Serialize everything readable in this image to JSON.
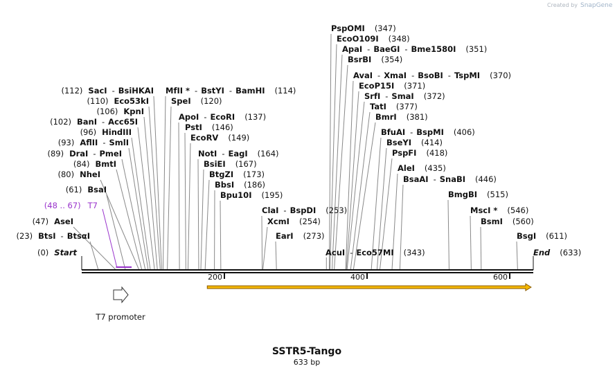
{
  "credit": {
    "prefix": "Created by",
    "brand": "SnapGene"
  },
  "sequence": {
    "name": "SSTR5-Tango",
    "length_label": "633 bp",
    "length": 633
  },
  "ends": [
    {
      "name": "Start",
      "pos": "(0)"
    },
    {
      "name": "End",
      "pos": "(633)"
    }
  ],
  "ruler": {
    "ticks": [
      200,
      400,
      600
    ]
  },
  "colors": {
    "primer": "#9933cc",
    "orf_fill": "#f5b800",
    "orf_stroke": "#8a5a00",
    "backbone": "#111111",
    "leader": "#888888"
  },
  "features": {
    "t7_primer": {
      "label": "T7",
      "range": "(48 .. 67)",
      "start": 48,
      "end": 67
    },
    "t7_promoter": {
      "label": "T7 promoter",
      "start": 48,
      "end": 67
    },
    "orf": {
      "start": 176,
      "end": 630
    }
  },
  "left_sites": [
    {
      "bp": 23,
      "names": [
        "BtsI",
        "BtsαI"
      ],
      "pos": "(23)"
    },
    {
      "bp": 47,
      "names": [
        "AseI"
      ],
      "pos": "(47)"
    },
    {
      "bp": 61,
      "names": [
        "BsaI"
      ],
      "pos": "(61)"
    },
    {
      "bp": 80,
      "names": [
        "NheI"
      ],
      "pos": "(80)"
    },
    {
      "bp": 84,
      "names": [
        "BmtI"
      ],
      "pos": "(84)"
    },
    {
      "bp": 89,
      "names": [
        "DraI",
        "PmeI"
      ],
      "pos": "(89)"
    },
    {
      "bp": 93,
      "names": [
        "AflII",
        "SmlI"
      ],
      "pos": "(93)"
    },
    {
      "bp": 96,
      "names": [
        "HindIII"
      ],
      "pos": "(96)"
    },
    {
      "bp": 102,
      "names": [
        "BanI",
        "Acc65I"
      ],
      "pos": "(102)"
    },
    {
      "bp": 106,
      "names": [
        "KpnI"
      ],
      "pos": "(106)"
    },
    {
      "bp": 110,
      "names": [
        "Eco53kI"
      ],
      "pos": "(110)"
    },
    {
      "bp": 112,
      "names": [
        "SacI",
        "BsiHKAI"
      ],
      "pos": "(112)"
    }
  ],
  "right_sites": [
    {
      "bp": 114,
      "names": [
        "MfII *",
        "BstYI",
        "BamHI"
      ],
      "pos": "(114)"
    },
    {
      "bp": 120,
      "names": [
        "SpeI"
      ],
      "pos": "(120)"
    },
    {
      "bp": 137,
      "names": [
        "ApoI",
        "EcoRI"
      ],
      "pos": "(137)"
    },
    {
      "bp": 146,
      "names": [
        "PstI"
      ],
      "pos": "(146)"
    },
    {
      "bp": 149,
      "names": [
        "EcoRV"
      ],
      "pos": "(149)"
    },
    {
      "bp": 164,
      "names": [
        "NotI",
        "EagI"
      ],
      "pos": "(164)"
    },
    {
      "bp": 167,
      "names": [
        "BsiEI"
      ],
      "pos": "(167)"
    },
    {
      "bp": 173,
      "names": [
        "BtgZI"
      ],
      "pos": "(173)"
    },
    {
      "bp": 186,
      "names": [
        "BbsI"
      ],
      "pos": "(186)"
    },
    {
      "bp": 195,
      "names": [
        "Bpu10I"
      ],
      "pos": "(195)"
    },
    {
      "bp": 253,
      "names": [
        "ClaI",
        "BspDI"
      ],
      "pos": "(253)"
    },
    {
      "bp": 254,
      "names": [
        "XcmI"
      ],
      "pos": "(254)"
    },
    {
      "bp": 273,
      "names": [
        "EarI"
      ],
      "pos": "(273)"
    },
    {
      "bp": 343,
      "names": [
        "AcuI",
        "Eco57MI"
      ],
      "pos": "(343)"
    },
    {
      "bp": 347,
      "names": [
        "PspOMI"
      ],
      "pos": "(347)"
    },
    {
      "bp": 348,
      "names": [
        "EcoO109I"
      ],
      "pos": "(348)"
    },
    {
      "bp": 351,
      "names": [
        "ApaI",
        "BaeGI",
        "Bme1580I"
      ],
      "pos": "(351)"
    },
    {
      "bp": 354,
      "names": [
        "BsrBI"
      ],
      "pos": "(354)"
    },
    {
      "bp": 370,
      "names": [
        "AvaI",
        "XmaI",
        "BsoBI",
        "TspMI"
      ],
      "pos": "(370)"
    },
    {
      "bp": 371,
      "names": [
        "EcoP15I"
      ],
      "pos": "(371)"
    },
    {
      "bp": 372,
      "names": [
        "SrfI",
        "SmaI"
      ],
      "pos": "(372)"
    },
    {
      "bp": 377,
      "names": [
        "TatI"
      ],
      "pos": "(377)"
    },
    {
      "bp": 381,
      "names": [
        "BmrI"
      ],
      "pos": "(381)"
    },
    {
      "bp": 406,
      "names": [
        "BfuAI",
        "BspMI"
      ],
      "pos": "(406)"
    },
    {
      "bp": 414,
      "names": [
        "BseYI"
      ],
      "pos": "(414)"
    },
    {
      "bp": 418,
      "names": [
        "PspFI"
      ],
      "pos": "(418)"
    },
    {
      "bp": 435,
      "names": [
        "AleI"
      ],
      "pos": "(435)"
    },
    {
      "bp": 446,
      "names": [
        "BsaAI",
        "SnaBI"
      ],
      "pos": "(446)"
    },
    {
      "bp": 515,
      "names": [
        "BmgBI"
      ],
      "pos": "(515)"
    },
    {
      "bp": 546,
      "names": [
        "MscI *"
      ],
      "pos": "(546)"
    },
    {
      "bp": 560,
      "names": [
        "BsmI"
      ],
      "pos": "(560)"
    },
    {
      "bp": 611,
      "names": [
        "BsgI"
      ],
      "pos": "(611)"
    }
  ]
}
